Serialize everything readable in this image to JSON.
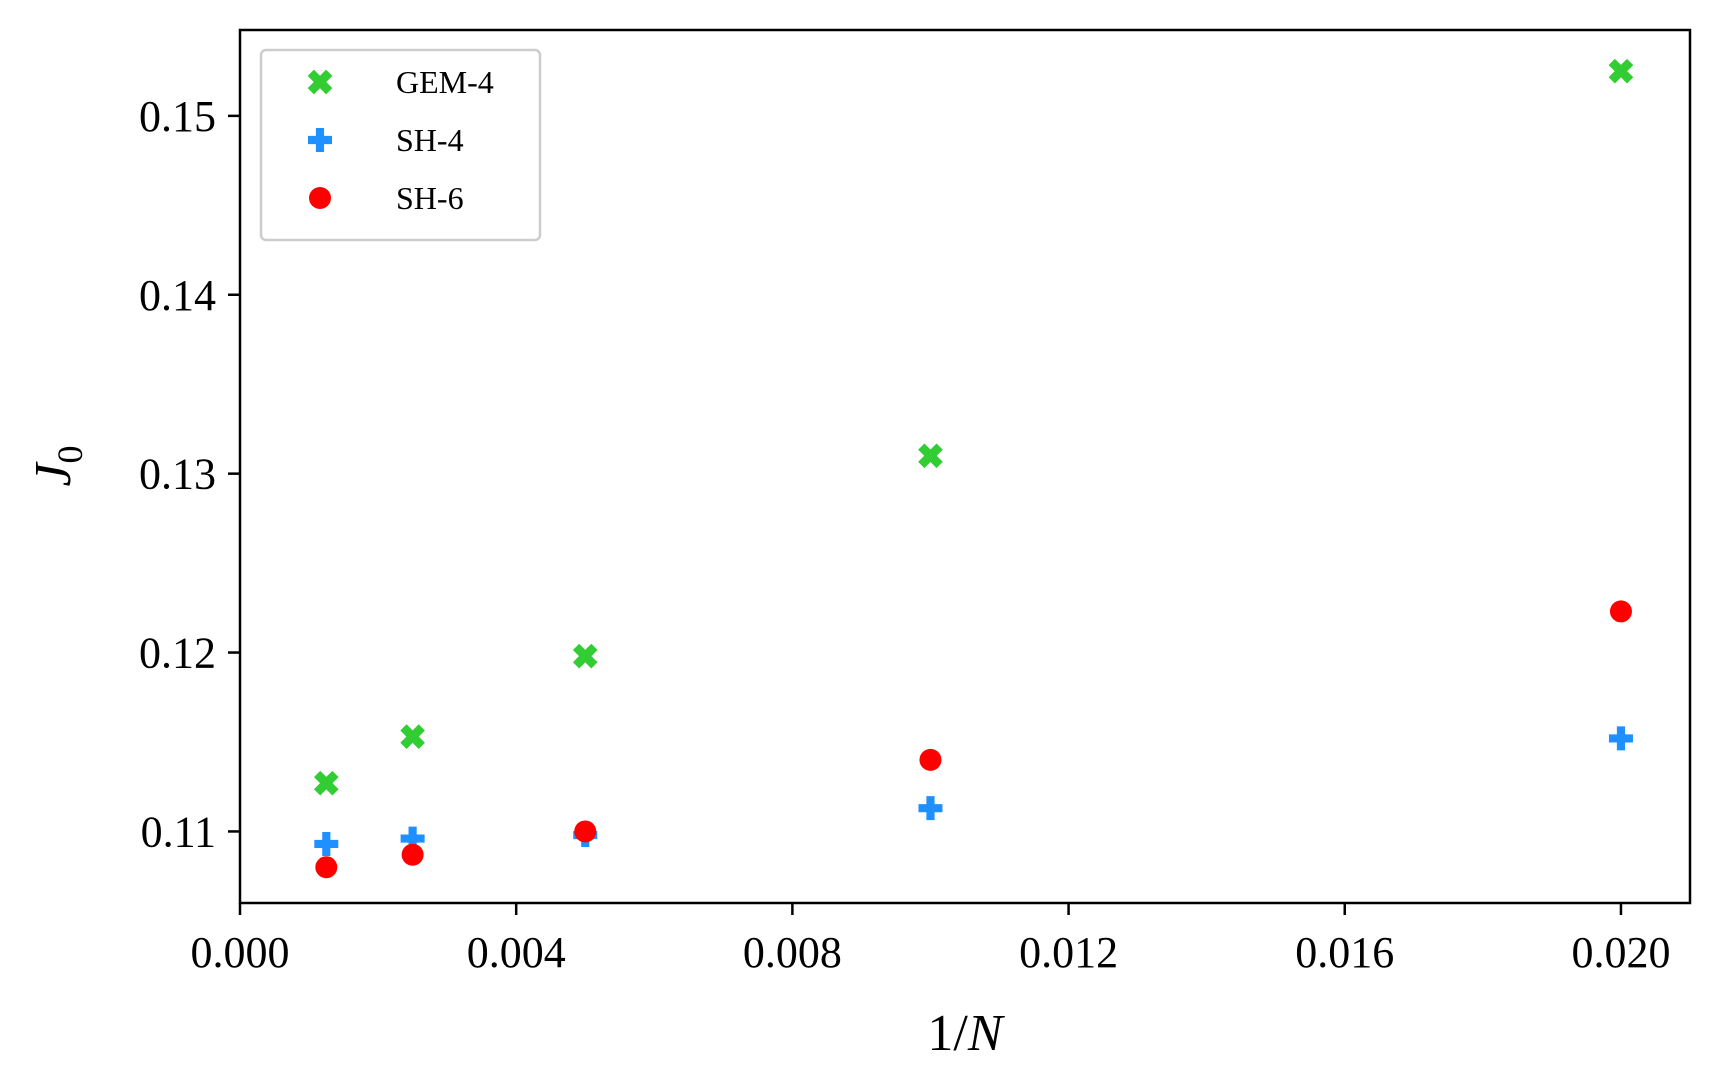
{
  "chart_data": {
    "type": "scatter",
    "title": "",
    "xlabel": "1/N",
    "ylabel": "J_0",
    "xlim": [
      0.0,
      0.021
    ],
    "ylim": [
      0.106,
      0.1548
    ],
    "xticks": [
      0.0,
      0.004,
      0.008,
      0.012,
      0.016,
      0.02
    ],
    "xtick_labels": [
      "0.000",
      "0.004",
      "0.008",
      "0.012",
      "0.016",
      "0.020"
    ],
    "yticks": [
      0.11,
      0.12,
      0.13,
      0.14,
      0.15
    ],
    "ytick_labels": [
      "0.11",
      "0.12",
      "0.13",
      "0.14",
      "0.15"
    ],
    "grid": false,
    "legend_position": "top-left",
    "series": [
      {
        "name": "GEM-4",
        "marker": "x-filled",
        "color": "#32cd32",
        "x": [
          0.00125,
          0.0025,
          0.005,
          0.01,
          0.02
        ],
        "y": [
          0.1127,
          0.1153,
          0.1198,
          0.131,
          0.1525
        ]
      },
      {
        "name": "SH-4",
        "marker": "plus-filled",
        "color": "#1e90ff",
        "x": [
          0.00125,
          0.0025,
          0.005,
          0.01,
          0.02
        ],
        "y": [
          0.1093,
          0.1096,
          0.1098,
          0.1113,
          0.1152
        ]
      },
      {
        "name": "SH-6",
        "marker": "circle",
        "color": "#ff0000",
        "x": [
          0.00125,
          0.0025,
          0.005,
          0.01,
          0.02
        ],
        "y": [
          0.108,
          0.1087,
          0.11,
          0.114,
          0.1223
        ]
      }
    ]
  }
}
